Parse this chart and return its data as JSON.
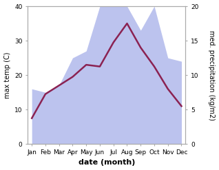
{
  "months": [
    "Jan",
    "Feb",
    "Mar",
    "Apr",
    "May",
    "Jun",
    "Jul",
    "Aug",
    "Sep",
    "Oct",
    "Nov",
    "Dec"
  ],
  "temp": [
    7.5,
    14.5,
    17.0,
    19.5,
    23.0,
    22.5,
    29.5,
    35.0,
    28.0,
    22.5,
    16.0,
    11.0
  ],
  "precip": [
    8.0,
    7.5,
    8.5,
    12.5,
    13.5,
    20.0,
    20.0,
    20.0,
    16.5,
    20.0,
    12.5,
    12.0
  ],
  "temp_color": "#8B2252",
  "precip_fill_color": "#bcc3ee",
  "ylim_left": [
    0,
    40
  ],
  "ylim_right": [
    0,
    20
  ],
  "yticks_left": [
    0,
    10,
    20,
    30,
    40
  ],
  "yticks_right": [
    0,
    5,
    10,
    15,
    20
  ],
  "xlabel": "date (month)",
  "ylabel_left": "max temp (C)",
  "ylabel_right": "med. precipitation (kg/m2)",
  "bg_color": "#ffffff",
  "spine_color": "#aaaaaa",
  "temp_linewidth": 1.8,
  "xlabel_fontsize": 8,
  "ylabel_fontsize": 7,
  "tick_fontsize": 6.5
}
